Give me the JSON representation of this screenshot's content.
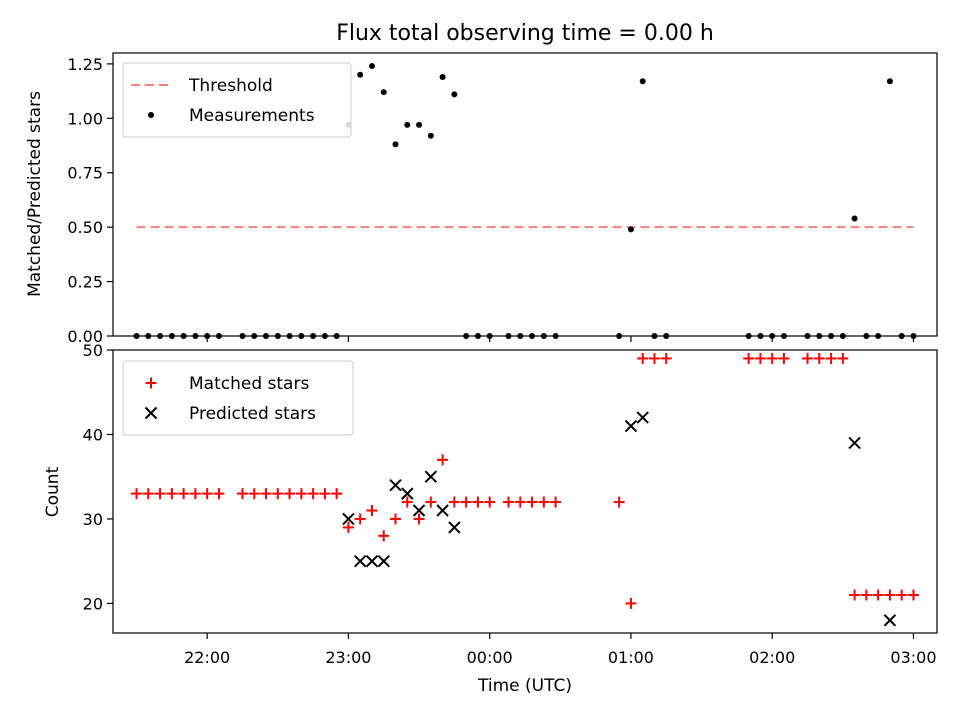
{
  "chart_data": [
    {
      "type": "scatter",
      "title": "Flux total observing time = 0.00 h",
      "xlabel": "",
      "ylabel": "Matched/Predicted stars",
      "x_unit": "time (UTC)",
      "xlim": [
        "21:20",
        "03:10"
      ],
      "ylim": [
        0,
        1.3
      ],
      "yticks": [
        0,
        0.25,
        0.5,
        0.75,
        1.0,
        1.25
      ],
      "ytick_labels": [
        "0.00",
        "0.25",
        "0.50",
        "0.75",
        "1.00",
        "1.25"
      ],
      "legend_position": "top-left",
      "grid": false,
      "series": [
        {
          "name": "Threshold",
          "kind": "dashed-line",
          "color": "#ff8080",
          "points": [
            [
              "21:30",
              0.5
            ],
            [
              "03:00",
              0.5
            ]
          ]
        },
        {
          "name": "Measurements",
          "kind": "dot",
          "color": "#000000",
          "points": [
            [
              "21:30",
              0.0
            ],
            [
              "21:35",
              0.0
            ],
            [
              "21:40",
              0.0
            ],
            [
              "21:45",
              0.0
            ],
            [
              "21:50",
              0.0
            ],
            [
              "21:55",
              0.0
            ],
            [
              "22:00",
              0.0
            ],
            [
              "22:05",
              0.0
            ],
            [
              "22:15",
              0.0
            ],
            [
              "22:20",
              0.0
            ],
            [
              "22:25",
              0.0
            ],
            [
              "22:30",
              0.0
            ],
            [
              "22:35",
              0.0
            ],
            [
              "22:40",
              0.0
            ],
            [
              "22:45",
              0.0
            ],
            [
              "22:50",
              0.0
            ],
            [
              "22:55",
              0.0
            ],
            [
              "23:00",
              0.97
            ],
            [
              "23:05",
              1.2
            ],
            [
              "23:10",
              1.24
            ],
            [
              "23:15",
              1.12
            ],
            [
              "23:20",
              0.88
            ],
            [
              "23:25",
              0.97
            ],
            [
              "23:30",
              0.97
            ],
            [
              "23:35",
              0.92
            ],
            [
              "23:40",
              1.19
            ],
            [
              "23:45",
              1.11
            ],
            [
              "23:50",
              0.0
            ],
            [
              "23:55",
              0.0
            ],
            [
              "00:00",
              0.0
            ],
            [
              "00:08",
              0.0
            ],
            [
              "00:13",
              0.0
            ],
            [
              "00:18",
              0.0
            ],
            [
              "00:23",
              0.0
            ],
            [
              "00:28",
              0.0
            ],
            [
              "00:55",
              0.0
            ],
            [
              "01:00",
              0.49
            ],
            [
              "01:05",
              1.17
            ],
            [
              "01:10",
              0.0
            ],
            [
              "01:15",
              0.0
            ],
            [
              "01:50",
              0.0
            ],
            [
              "01:55",
              0.0
            ],
            [
              "02:00",
              0.0
            ],
            [
              "02:05",
              0.0
            ],
            [
              "02:15",
              0.0
            ],
            [
              "02:20",
              0.0
            ],
            [
              "02:25",
              0.0
            ],
            [
              "02:30",
              0.0
            ],
            [
              "02:35",
              0.54
            ],
            [
              "02:40",
              0.0
            ],
            [
              "02:45",
              0.0
            ],
            [
              "02:50",
              1.17
            ],
            [
              "02:55",
              0.0
            ],
            [
              "03:00",
              0.0
            ]
          ]
        }
      ]
    },
    {
      "type": "scatter",
      "title": "",
      "xlabel": "Time (UTC)",
      "ylabel": "Count",
      "x_unit": "time (UTC)",
      "xlim": [
        "21:20",
        "03:10"
      ],
      "ylim": [
        16.5,
        50
      ],
      "yticks": [
        20,
        30,
        40,
        50
      ],
      "ytick_labels": [
        "20",
        "30",
        "40",
        "50"
      ],
      "xticks": [
        "22:00",
        "23:00",
        "00:00",
        "01:00",
        "02:00",
        "03:00"
      ],
      "xtick_labels": [
        "22:00",
        "23:00",
        "00:00",
        "01:00",
        "02:00",
        "03:00"
      ],
      "legend_position": "top-left",
      "grid": false,
      "series": [
        {
          "name": "Matched stars",
          "kind": "plus",
          "color": "#ff0000",
          "points": [
            [
              "21:30",
              33
            ],
            [
              "21:35",
              33
            ],
            [
              "21:40",
              33
            ],
            [
              "21:45",
              33
            ],
            [
              "21:50",
              33
            ],
            [
              "21:55",
              33
            ],
            [
              "22:00",
              33
            ],
            [
              "22:05",
              33
            ],
            [
              "22:15",
              33
            ],
            [
              "22:20",
              33
            ],
            [
              "22:25",
              33
            ],
            [
              "22:30",
              33
            ],
            [
              "22:35",
              33
            ],
            [
              "22:40",
              33
            ],
            [
              "22:45",
              33
            ],
            [
              "22:50",
              33
            ],
            [
              "22:55",
              33
            ],
            [
              "23:00",
              29
            ],
            [
              "23:05",
              30
            ],
            [
              "23:10",
              31
            ],
            [
              "23:15",
              28
            ],
            [
              "23:20",
              30
            ],
            [
              "23:25",
              32
            ],
            [
              "23:30",
              30
            ],
            [
              "23:35",
              32
            ],
            [
              "23:40",
              37
            ],
            [
              "23:45",
              32
            ],
            [
              "23:50",
              32
            ],
            [
              "23:55",
              32
            ],
            [
              "00:00",
              32
            ],
            [
              "00:08",
              32
            ],
            [
              "00:13",
              32
            ],
            [
              "00:18",
              32
            ],
            [
              "00:23",
              32
            ],
            [
              "00:28",
              32
            ],
            [
              "00:55",
              32
            ],
            [
              "01:00",
              20
            ],
            [
              "01:05",
              49
            ],
            [
              "01:10",
              49
            ],
            [
              "01:15",
              49
            ],
            [
              "01:50",
              49
            ],
            [
              "01:55",
              49
            ],
            [
              "02:00",
              49
            ],
            [
              "02:05",
              49
            ],
            [
              "02:15",
              49
            ],
            [
              "02:20",
              49
            ],
            [
              "02:25",
              49
            ],
            [
              "02:30",
              49
            ],
            [
              "02:35",
              21
            ],
            [
              "02:40",
              21
            ],
            [
              "02:45",
              21
            ],
            [
              "02:50",
              21
            ],
            [
              "02:55",
              21
            ],
            [
              "03:00",
              21
            ]
          ]
        },
        {
          "name": "Predicted stars",
          "kind": "x",
          "color": "#000000",
          "points": [
            [
              "23:00",
              30
            ],
            [
              "23:05",
              25
            ],
            [
              "23:10",
              25
            ],
            [
              "23:15",
              25
            ],
            [
              "23:20",
              34
            ],
            [
              "23:25",
              33
            ],
            [
              "23:30",
              31
            ],
            [
              "23:35",
              35
            ],
            [
              "23:40",
              31
            ],
            [
              "23:45",
              29
            ],
            [
              "01:00",
              41
            ],
            [
              "01:05",
              42
            ],
            [
              "02:35",
              39
            ],
            [
              "02:50",
              18
            ]
          ]
        }
      ]
    }
  ]
}
